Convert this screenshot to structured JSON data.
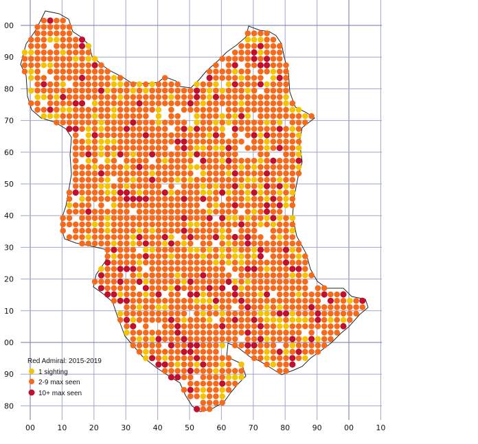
{
  "legend": {
    "title": "Red Admiral:  2015-2019",
    "entries": [
      {
        "label": "1 sighting",
        "color": "#f5c400"
      },
      {
        "label": "2-9 max seen",
        "color": "#f66a1c"
      },
      {
        "label": "10+ max seen",
        "color": "#c0102e"
      }
    ]
  },
  "grid": {
    "x_labels": [
      "00",
      "10",
      "20",
      "30",
      "40",
      "50",
      "60",
      "70",
      "80",
      "90",
      "00",
      "10"
    ],
    "y_labels": [
      "00",
      "90",
      "80",
      "70",
      "60",
      "50",
      "40",
      "30",
      "20",
      "10",
      "00",
      "90",
      "80"
    ],
    "line_color": "#9fa6c8",
    "major_line_color": "#6d76a8"
  },
  "chart_data": {
    "type": "scatter",
    "description_units": "km grid, 2 km squares",
    "categories": [
      "1 sighting",
      "2-9 max seen",
      "10+ max seen"
    ]
  }
}
